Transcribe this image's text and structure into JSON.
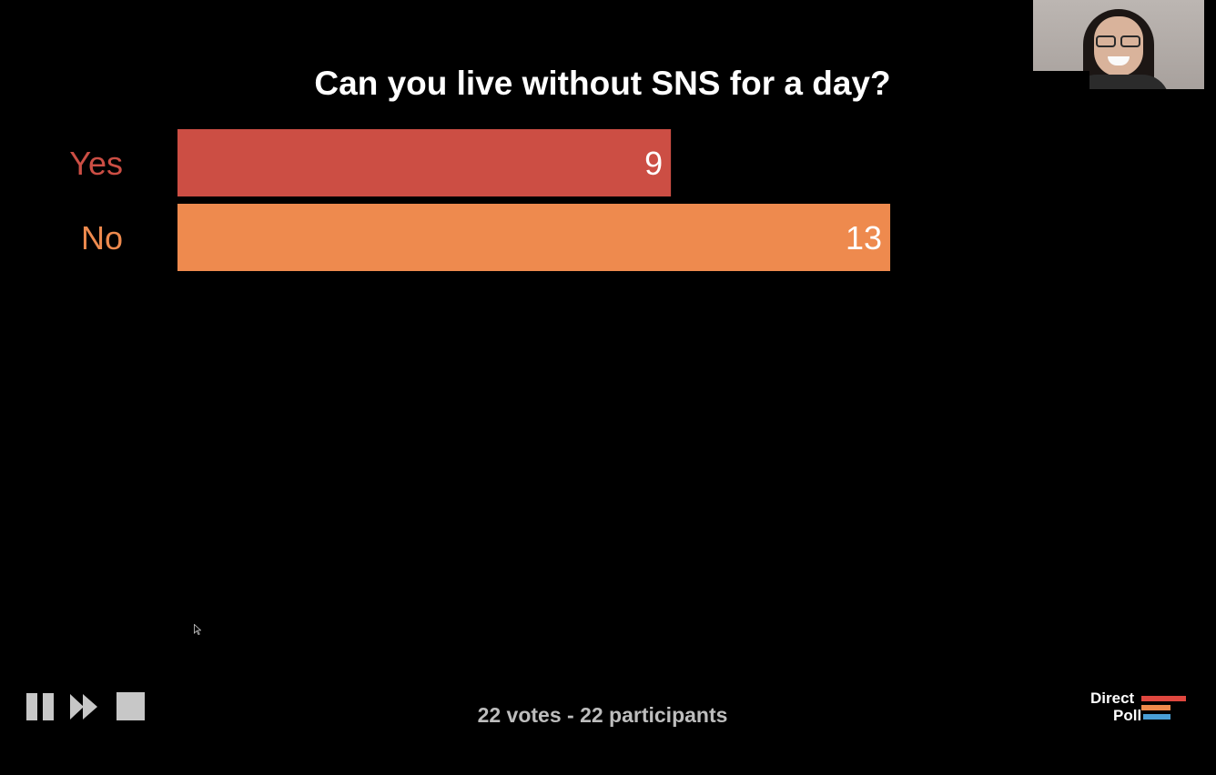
{
  "poll": {
    "title": "Can you live without SNS for a day?",
    "summary": "22 votes - 22 participants"
  },
  "chart_data": {
    "type": "bar",
    "orientation": "horizontal",
    "title": "Can you live without SNS for a day?",
    "categories": [
      "Yes",
      "No"
    ],
    "values": [
      9,
      13
    ],
    "value_labels": [
      "9",
      "13"
    ],
    "colors": [
      "#cc4e44",
      "#ee8a4e"
    ],
    "xlim": [
      0,
      17
    ],
    "grid": false,
    "legend": "none"
  },
  "controls": {
    "pause_icon": "pause-icon",
    "next_icon": "fast-forward-icon",
    "stop_icon": "stop-icon"
  },
  "branding": {
    "logo_line1": "Direct",
    "logo_line2": "Poll",
    "colors": {
      "red": "#e0473f",
      "orange": "#ef8a4c",
      "blue": "#4a9fd6"
    }
  },
  "theme": {
    "background": "#000000",
    "title_color": "#ffffff",
    "summary_color": "#bdbdbd",
    "control_color": "#c7c7c7"
  }
}
